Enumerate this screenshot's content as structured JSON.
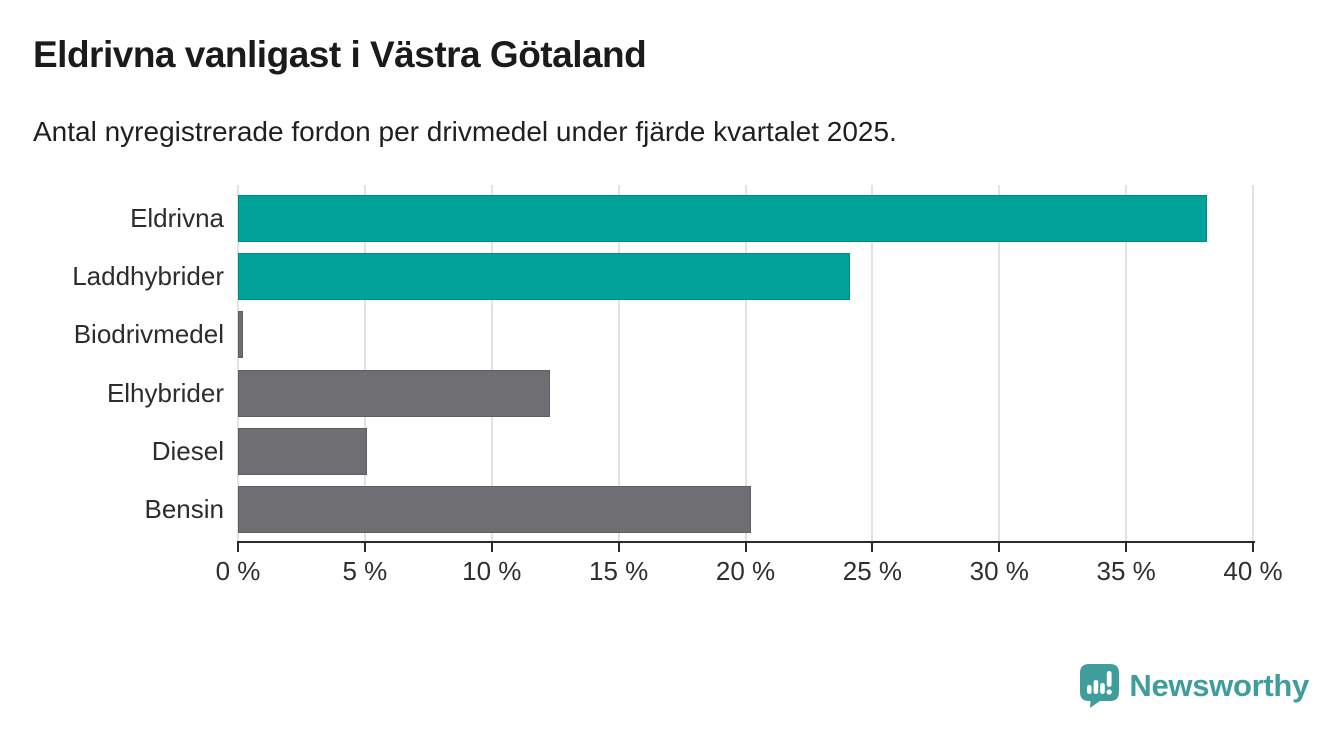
{
  "header": {
    "title": "Eldrivna vanligast i Västra Götaland",
    "subtitle": "Antal nyregistrerade fordon per drivmedel under fjärde kvartalet 2025."
  },
  "chart_data": {
    "type": "bar",
    "orientation": "horizontal",
    "title": "Eldrivna vanligast i Västra Götaland",
    "subtitle": "Antal nyregistrerade fordon per drivmedel under fjärde kvartalet 2025.",
    "categories": [
      "Eldrivna",
      "Laddhybrider",
      "Biodrivmedel",
      "Elhybrider",
      "Diesel",
      "Bensin"
    ],
    "values": [
      38.2,
      24.1,
      0.2,
      12.3,
      5.1,
      20.2
    ],
    "unit": "%",
    "bar_colors": [
      "#00a299",
      "#00a299",
      "#6f6e73",
      "#6f6e73",
      "#6f6e73",
      "#6f6e73"
    ],
    "highlight_color": "#00a299",
    "default_color": "#6f6e73",
    "xlabel": "",
    "ylabel": "",
    "xlim": [
      0,
      40
    ],
    "x_tick_values": [
      0,
      5,
      10,
      15,
      20,
      25,
      30,
      35,
      40
    ],
    "x_tick_labels": [
      "0 %",
      "5 %",
      "10 %",
      "15 %",
      "20 %",
      "25 %",
      "30 %",
      "35 %",
      "40 %"
    ],
    "grid": true,
    "gridline_color": "#e2e2e2",
    "legend_position": "none"
  },
  "footer": {
    "brand": "Newsworthy",
    "brand_color": "#3f9e9c",
    "logo_icon": "newsworthy-badge-bar-chart-icon"
  }
}
